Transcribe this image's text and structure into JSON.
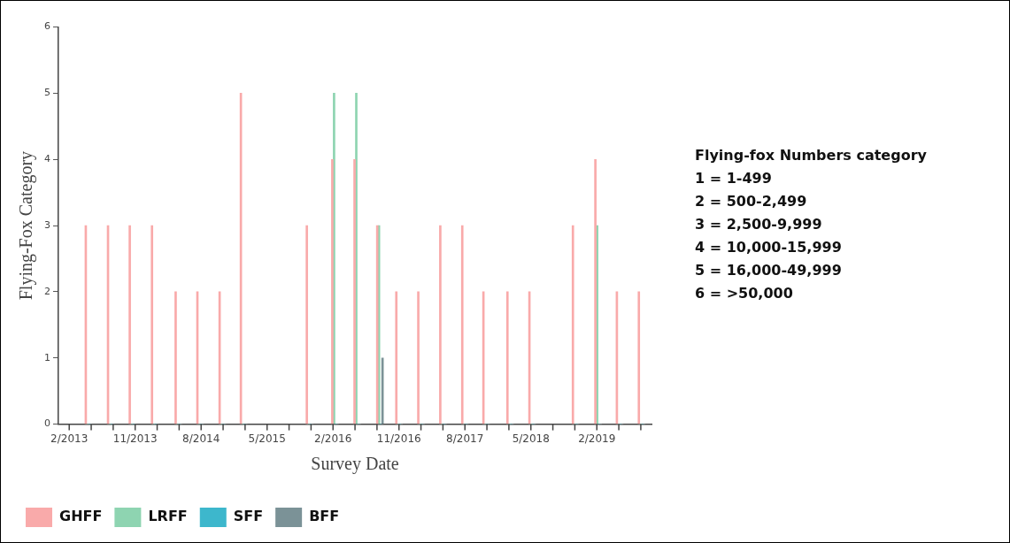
{
  "chart_data": {
    "type": "bar",
    "xlabel": "Survey Date",
    "ylabel": "Flying-Fox Category",
    "x": [
      "2013-04-20",
      "2013-07-21",
      "2013-10-20",
      "2014-01-21",
      "2014-04-28",
      "2014-07-27",
      "2014-10-28",
      "2015-01-25",
      "2015-10-25",
      "2016-02-09",
      "2016-05-10",
      "2016-08-13",
      "2016-11-01",
      "2017-02-01",
      "2017-05-01",
      "2017-08-01",
      "2017-10-28",
      "2018-02-06",
      "2018-05-06",
      "2018-11-04",
      "2019-02-06",
      "2019-05-04",
      "2019-08-04"
    ],
    "series": [
      {
        "name": "GHFF",
        "color": "#f9aaaa",
        "values": [
          3,
          3,
          3,
          3,
          2,
          2,
          2,
          5,
          3,
          4,
          4,
          3,
          2,
          2,
          3,
          3,
          2,
          2,
          2,
          3,
          4,
          2,
          2
        ]
      },
      {
        "name": "LRFF",
        "color": "#8ed4b1",
        "values": [
          0,
          0,
          0,
          0,
          0,
          0,
          0,
          0,
          0,
          5,
          5,
          3,
          0,
          0,
          0,
          0,
          0,
          0,
          0,
          0,
          3,
          0,
          0
        ]
      },
      {
        "name": "SFF",
        "color": "#3db7cc",
        "values": [
          0,
          0,
          0,
          0,
          0,
          0,
          0,
          0,
          0,
          0,
          0,
          0,
          0,
          0,
          0,
          0,
          0,
          0,
          0,
          0,
          0,
          0,
          0
        ]
      },
      {
        "name": "BFF",
        "color": "#7b9297",
        "values": [
          0,
          0,
          0,
          0,
          0,
          0,
          0,
          0,
          0,
          0,
          0,
          1,
          0,
          0,
          0,
          0,
          0,
          0,
          0,
          0,
          0,
          0,
          0
        ]
      }
    ],
    "xlim": [
      "2012-12-17",
      "2019-09-15"
    ],
    "xticks": [
      {
        "value": "2013-02",
        "label": "2/2013"
      },
      {
        "value": "2013-05",
        "label": null
      },
      {
        "value": "2013-08",
        "label": null
      },
      {
        "value": "2013-11",
        "label": "11/2013"
      },
      {
        "value": "2014-02",
        "label": null
      },
      {
        "value": "2014-05",
        "label": null
      },
      {
        "value": "2014-08",
        "label": "8/2014"
      },
      {
        "value": "2014-11",
        "label": null
      },
      {
        "value": "2015-02",
        "label": null
      },
      {
        "value": "2015-05",
        "label": "5/2015"
      },
      {
        "value": "2015-08",
        "label": null
      },
      {
        "value": "2015-11",
        "label": null
      },
      {
        "value": "2016-02",
        "label": "2/2016"
      },
      {
        "value": "2016-05",
        "label": null
      },
      {
        "value": "2016-08",
        "label": null
      },
      {
        "value": "2016-11",
        "label": "11/2016"
      },
      {
        "value": "2017-02",
        "label": null
      },
      {
        "value": "2017-05",
        "label": null
      },
      {
        "value": "2017-08",
        "label": "8/2017"
      },
      {
        "value": "2017-11",
        "label": null
      },
      {
        "value": "2018-02",
        "label": null
      },
      {
        "value": "2018-05",
        "label": "5/2018"
      },
      {
        "value": "2018-08",
        "label": null
      },
      {
        "value": "2018-11",
        "label": null
      },
      {
        "value": "2019-02",
        "label": "2/2019"
      },
      {
        "value": "2019-05",
        "label": null
      },
      {
        "value": "2019-08",
        "label": null
      }
    ],
    "ylim": [
      0,
      6
    ],
    "yticks": [
      0,
      1,
      2,
      3,
      4,
      5,
      6
    ],
    "legend": "bottom left",
    "annotations": [
      "Flying-fox Numbers category",
      "1 = 1-499",
      "2 = 500-2,499",
      "3 = 2,500-9,999",
      "4 = 10,000-15,999",
      "5 = 16,000-49,999",
      "6 = >50,000"
    ]
  }
}
